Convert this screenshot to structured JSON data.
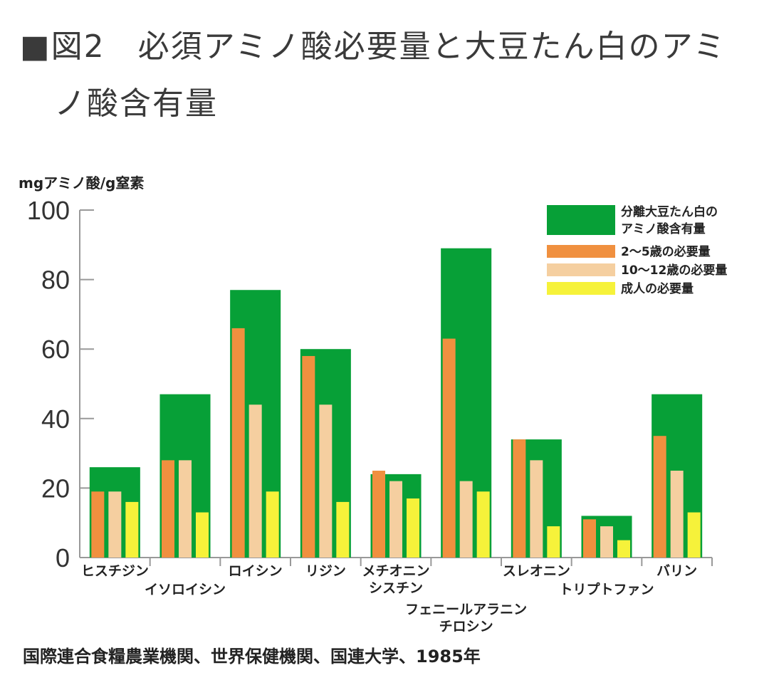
{
  "header": {
    "title_line1": "■図2　必須アミノ酸必要量と大豆たん白のアミ",
    "title_line2": "ノ酸含有量"
  },
  "source": "国際連合食糧農業機関、世界保健機関、国連大学、1985年",
  "chart_data": {
    "type": "bar",
    "title": "必須アミノ酸必要量と大豆たん白のアミノ酸含有量",
    "ylabel": "mgアミノ酸/g窒素",
    "xlabel": "",
    "ylim": [
      0,
      100
    ],
    "yticks": [
      0,
      20,
      40,
      60,
      80,
      100
    ],
    "grid": false,
    "legend_position": "top-right",
    "categories": [
      [
        "ヒスチジン"
      ],
      [
        "イソロイシン"
      ],
      [
        "ロイシン"
      ],
      [
        "リジン"
      ],
      [
        "メチオニン",
        "シスチン"
      ],
      [
        "フェニールアラニン",
        "チロシン"
      ],
      [
        "スレオニン"
      ],
      [
        "トリプトファン"
      ],
      [
        "バリン"
      ]
    ],
    "series": [
      {
        "name": "分離大豆たん白のアミノ酸含有量",
        "legend_lines": [
          "分離大豆たん白の",
          "アミノ酸含有量"
        ],
        "color": "#07a037",
        "values": [
          26,
          47,
          77,
          60,
          24,
          89,
          34,
          12,
          47
        ]
      },
      {
        "name": "2〜5歳の必要量",
        "legend_lines": [
          "2〜5歳の必要量"
        ],
        "color": "#f0903f",
        "values": [
          19,
          28,
          66,
          58,
          25,
          63,
          34,
          11,
          35
        ]
      },
      {
        "name": "10〜12歳の必要量",
        "legend_lines": [
          "10〜12歳の必要量"
        ],
        "color": "#f5cfa0",
        "values": [
          19,
          28,
          44,
          44,
          22,
          22,
          28,
          9,
          25
        ]
      },
      {
        "name": "成人の必要量",
        "legend_lines": [
          "成人の必要量"
        ],
        "color": "#f6f23a",
        "values": [
          16,
          13,
          19,
          16,
          17,
          19,
          9,
          5,
          13
        ]
      }
    ]
  }
}
